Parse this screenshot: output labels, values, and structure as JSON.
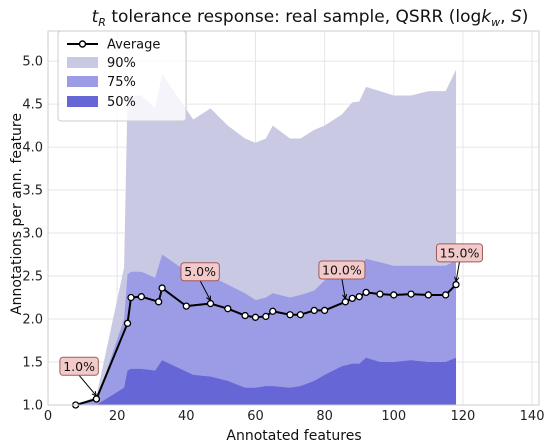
{
  "chart_data": {
    "type": "area",
    "title": "tR tolerance response: real sample, QSRR (logkw, S)",
    "title_parts": {
      "t": "t",
      "sub_r": "R",
      "mid": " tolerance response: real sample, QSRR (log",
      "k": "k",
      "sub_w": "w",
      "comma": ", ",
      "s": "S",
      "close": ")"
    },
    "xlabel": "Annotated features",
    "ylabel": "Annotations per ann. feature",
    "xlim": [
      0,
      142
    ],
    "ylim": [
      1.0,
      5.35
    ],
    "xticks": [
      0,
      20,
      40,
      60,
      80,
      100,
      120,
      140
    ],
    "yticks": [
      1.0,
      1.5,
      2.0,
      2.5,
      3.0,
      3.5,
      4.0,
      4.5,
      5.0
    ],
    "grid": true,
    "legend_position": "top-left",
    "legend": {
      "average": "Average",
      "p90": "90%",
      "p75": "75%",
      "p50": "50%"
    },
    "colors": {
      "p90": "#c9c9e4",
      "p75": "#9c9ce6",
      "p50": "#6666d6",
      "average": "#000000",
      "annotation_bg": "#f3caca",
      "annotation_border": "#a05a5a"
    },
    "band_x": [
      8,
      14,
      22,
      23,
      24,
      27,
      31,
      33,
      42,
      47,
      52,
      57,
      60,
      63,
      65,
      70,
      73,
      77,
      80,
      85,
      88,
      90,
      92,
      96,
      100,
      105,
      110,
      115,
      118
    ],
    "series": [
      {
        "name": "90%",
        "lower": [
          1.0,
          1.0,
          1.0,
          1.0,
          1.0,
          1.0,
          1.0,
          1.0,
          1.0,
          1.0,
          1.0,
          1.0,
          1.0,
          1.0,
          1.0,
          1.0,
          1.0,
          1.0,
          1.0,
          1.0,
          1.0,
          1.0,
          1.0,
          1.0,
          1.0,
          1.0,
          1.0,
          1.0,
          1.0
        ],
        "upper": [
          1.0,
          1.1,
          2.6,
          4.58,
          4.6,
          4.6,
          4.45,
          4.85,
          4.32,
          4.45,
          4.25,
          4.1,
          4.05,
          4.1,
          4.25,
          4.1,
          4.1,
          4.2,
          4.25,
          4.38,
          4.52,
          4.53,
          4.7,
          4.65,
          4.6,
          4.6,
          4.65,
          4.65,
          4.9
        ]
      },
      {
        "name": "75%",
        "lower": [
          1.0,
          1.0,
          1.0,
          1.0,
          1.0,
          1.0,
          1.0,
          1.0,
          1.0,
          1.0,
          1.0,
          1.0,
          1.0,
          1.0,
          1.0,
          1.0,
          1.0,
          1.0,
          1.0,
          1.0,
          1.0,
          1.0,
          1.0,
          1.0,
          1.0,
          1.0,
          1.0,
          1.0,
          1.0
        ],
        "upper": [
          1.0,
          1.05,
          2.0,
          2.52,
          2.55,
          2.55,
          2.48,
          2.75,
          2.5,
          2.5,
          2.4,
          2.3,
          2.22,
          2.25,
          2.3,
          2.25,
          2.28,
          2.33,
          2.45,
          2.55,
          2.6,
          2.62,
          2.7,
          2.66,
          2.62,
          2.62,
          2.62,
          2.62,
          2.68
        ]
      },
      {
        "name": "50%",
        "lower": [
          1.0,
          1.0,
          1.0,
          1.0,
          1.0,
          1.0,
          1.0,
          1.0,
          1.0,
          1.0,
          1.0,
          1.0,
          1.0,
          1.0,
          1.0,
          1.0,
          1.0,
          1.0,
          1.0,
          1.0,
          1.0,
          1.0,
          1.0,
          1.0,
          1.0,
          1.0,
          1.0,
          1.0,
          1.0
        ],
        "upper": [
          1.0,
          1.0,
          1.2,
          1.4,
          1.42,
          1.42,
          1.4,
          1.52,
          1.35,
          1.33,
          1.28,
          1.2,
          1.2,
          1.22,
          1.22,
          1.2,
          1.22,
          1.28,
          1.35,
          1.45,
          1.48,
          1.48,
          1.55,
          1.5,
          1.5,
          1.52,
          1.5,
          1.5,
          1.55
        ]
      },
      {
        "name": "Average",
        "x": [
          8,
          14,
          23,
          24,
          27,
          32,
          33,
          40,
          47,
          52,
          57,
          60,
          63,
          65,
          70,
          73,
          77,
          80,
          86,
          88,
          90,
          92,
          96,
          100,
          105,
          110,
          115,
          118
        ],
        "y": [
          1.0,
          1.07,
          1.95,
          2.25,
          2.26,
          2.2,
          2.36,
          2.15,
          2.18,
          2.12,
          2.04,
          2.02,
          2.03,
          2.09,
          2.05,
          2.05,
          2.1,
          2.1,
          2.2,
          2.24,
          2.26,
          2.31,
          2.29,
          2.28,
          2.29,
          2.28,
          2.28,
          2.4
        ]
      }
    ],
    "annotations": [
      {
        "text": "1.0%",
        "point": [
          14,
          1.07
        ],
        "label_at": [
          9,
          1.45
        ]
      },
      {
        "text": "5.0%",
        "point": [
          47,
          2.18
        ],
        "label_at": [
          44,
          2.55
        ]
      },
      {
        "text": "10.0%",
        "point": [
          86,
          2.2
        ],
        "label_at": [
          85,
          2.57
        ]
      },
      {
        "text": "15.0%",
        "point": [
          118,
          2.4
        ],
        "label_at": [
          119,
          2.77
        ]
      }
    ]
  }
}
